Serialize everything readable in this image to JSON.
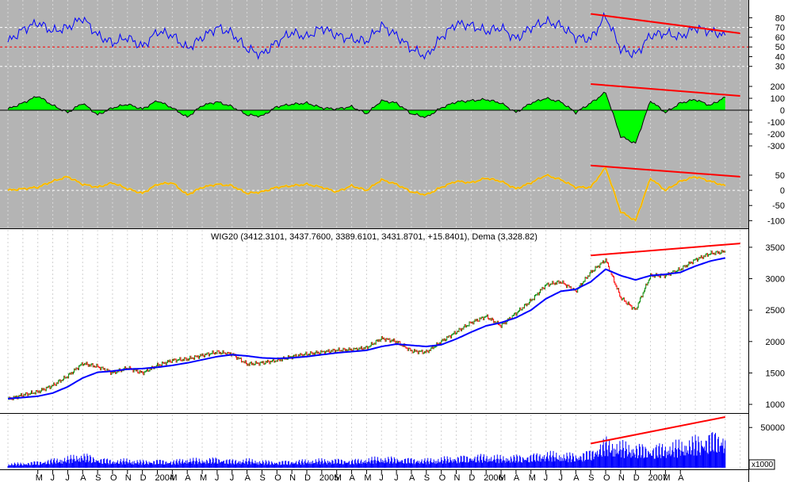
{
  "title": "WIG20 (3412.3101, 3437.7600, 3389.6101, 3431.8701, +15.8401), Dema (3,328.82)",
  "volume_unit_label": "x1000",
  "colors": {
    "panel_bg_top": "#b4b4b4",
    "rsi_line": "#0000ff",
    "hist_fill": "#00ff00",
    "osc_line": "#ff8800",
    "osc_line2": "#ffff00",
    "trend": "#ff0000",
    "dema": "#0000ff",
    "up": "#008800",
    "down": "#ff0000",
    "volume": "#0000ff",
    "grid": "#c8c8c8"
  },
  "chart_data": [
    {
      "panel": "rsi",
      "type": "line",
      "ylim": [
        20,
        95
      ],
      "yticks": [
        80,
        70,
        60,
        50,
        40,
        30
      ],
      "dashed_levels": [
        70,
        50,
        30
      ],
      "x": [
        "2003-01",
        "2003-02",
        "2003-03",
        "2003-04",
        "2003-05",
        "2003-06",
        "2003-07",
        "2003-08",
        "2003-09",
        "2003-10",
        "2003-11",
        "2003-12",
        "2004-01",
        "2004-02",
        "2004-03",
        "2004-04",
        "2004-05",
        "2004-06",
        "2004-07",
        "2004-08",
        "2004-09",
        "2004-10",
        "2004-11",
        "2004-12",
        "2005-01",
        "2005-02",
        "2005-03",
        "2005-04",
        "2005-05",
        "2005-06",
        "2005-07",
        "2005-08",
        "2005-09",
        "2005-10",
        "2005-11",
        "2005-12",
        "2006-01",
        "2006-02",
        "2006-03",
        "2006-04",
        "2006-05",
        "2006-06",
        "2006-07",
        "2006-08",
        "2006-09",
        "2006-10",
        "2006-11",
        "2006-12",
        "2007-01"
      ],
      "values": [
        55,
        68,
        75,
        66,
        70,
        80,
        62,
        54,
        60,
        50,
        66,
        62,
        48,
        60,
        70,
        64,
        48,
        42,
        55,
        65,
        60,
        70,
        62,
        58,
        56,
        72,
        62,
        48,
        40,
        60,
        74,
        72,
        66,
        70,
        58,
        70,
        76,
        72,
        60,
        58,
        82,
        48,
        42,
        62,
        64,
        60,
        70,
        66,
        62
      ],
      "trend_line": {
        "from": {
          "x": "2006-04",
          "value": 84
        },
        "to": {
          "x": "2007-02",
          "value": 64
        }
      }
    },
    {
      "panel": "macd_histogram",
      "type": "area",
      "ylim": [
        -380,
        260
      ],
      "yticks": [
        200,
        100,
        0,
        -100,
        -200,
        -300
      ],
      "x": [
        "2003-01",
        "2003-02",
        "2003-03",
        "2003-04",
        "2003-05",
        "2003-06",
        "2003-07",
        "2003-08",
        "2003-09",
        "2003-10",
        "2003-11",
        "2003-12",
        "2004-01",
        "2004-02",
        "2004-03",
        "2004-04",
        "2004-05",
        "2004-06",
        "2004-07",
        "2004-08",
        "2004-09",
        "2004-10",
        "2004-11",
        "2004-12",
        "2005-01",
        "2005-02",
        "2005-03",
        "2005-04",
        "2005-05",
        "2005-06",
        "2005-07",
        "2005-08",
        "2005-09",
        "2005-10",
        "2005-11",
        "2005-12",
        "2006-01",
        "2006-02",
        "2006-03",
        "2006-04",
        "2006-05",
        "2006-06",
        "2006-07",
        "2006-08",
        "2006-09",
        "2006-10",
        "2006-11",
        "2006-12",
        "2007-01"
      ],
      "values": [
        10,
        60,
        120,
        40,
        -20,
        60,
        -40,
        20,
        50,
        10,
        80,
        20,
        -60,
        40,
        70,
        30,
        -40,
        -50,
        30,
        50,
        60,
        20,
        10,
        30,
        -30,
        80,
        60,
        -30,
        -60,
        20,
        70,
        80,
        90,
        60,
        -20,
        60,
        100,
        70,
        -20,
        60,
        150,
        -220,
        -280,
        80,
        -20,
        60,
        90,
        40,
        110
      ],
      "trend_line": {
        "from": {
          "x": "2006-04",
          "value": 220
        },
        "to": {
          "x": "2007-02",
          "value": 120
        }
      }
    },
    {
      "panel": "oscillator",
      "type": "line",
      "ylim": [
        -120,
        110
      ],
      "yticks": [
        50,
        0,
        -50,
        -100
      ],
      "dashed_levels": [
        0
      ],
      "x": [
        "2003-01",
        "2003-02",
        "2003-03",
        "2003-04",
        "2003-05",
        "2003-06",
        "2003-07",
        "2003-08",
        "2003-09",
        "2003-10",
        "2003-11",
        "2003-12",
        "2004-01",
        "2004-02",
        "2004-03",
        "2004-04",
        "2004-05",
        "2004-06",
        "2004-07",
        "2004-08",
        "2004-09",
        "2004-10",
        "2004-11",
        "2004-12",
        "2005-01",
        "2005-02",
        "2005-03",
        "2005-04",
        "2005-05",
        "2005-06",
        "2005-07",
        "2005-08",
        "2005-09",
        "2005-10",
        "2005-11",
        "2005-12",
        "2006-01",
        "2006-02",
        "2006-03",
        "2006-04",
        "2006-05",
        "2006-06",
        "2006-07",
        "2006-08",
        "2006-09",
        "2006-10",
        "2006-11",
        "2006-12",
        "2007-01"
      ],
      "values": [
        0,
        5,
        10,
        30,
        45,
        20,
        10,
        25,
        5,
        -10,
        20,
        25,
        -15,
        10,
        20,
        15,
        -10,
        -5,
        10,
        15,
        20,
        10,
        -5,
        15,
        0,
        35,
        20,
        -5,
        -15,
        10,
        30,
        25,
        40,
        30,
        5,
        25,
        50,
        35,
        10,
        10,
        75,
        -70,
        -100,
        40,
        0,
        30,
        45,
        30,
        15
      ],
      "trend_line": {
        "from": {
          "x": "2006-04",
          "value": 82
        },
        "to": {
          "x": "2007-02",
          "value": 45
        }
      }
    },
    {
      "panel": "price",
      "type": "line",
      "title": "WIG20 (3412.3101, 3437.7600, 3389.6101, 3431.8701, +15.8401), Dema (3,328.82)",
      "ylim": [
        900,
        3650
      ],
      "yticks": [
        3500,
        3000,
        2500,
        2000,
        1500,
        1000
      ],
      "x": [
        "2003-01",
        "2003-02",
        "2003-03",
        "2003-04",
        "2003-05",
        "2003-06",
        "2003-07",
        "2003-08",
        "2003-09",
        "2003-10",
        "2003-11",
        "2003-12",
        "2004-01",
        "2004-02",
        "2004-03",
        "2004-04",
        "2004-05",
        "2004-06",
        "2004-07",
        "2004-08",
        "2004-09",
        "2004-10",
        "2004-11",
        "2004-12",
        "2005-01",
        "2005-02",
        "2005-03",
        "2005-04",
        "2005-05",
        "2005-06",
        "2005-07",
        "2005-08",
        "2005-09",
        "2005-10",
        "2005-11",
        "2005-12",
        "2006-01",
        "2006-02",
        "2006-03",
        "2006-04",
        "2006-05",
        "2006-06",
        "2006-07",
        "2006-08",
        "2006-09",
        "2006-10",
        "2006-11",
        "2006-12",
        "2007-01"
      ],
      "series": [
        {
          "name": "WIG20",
          "values": [
            1080,
            1150,
            1200,
            1300,
            1450,
            1650,
            1600,
            1500,
            1580,
            1500,
            1620,
            1700,
            1720,
            1780,
            1830,
            1800,
            1640,
            1660,
            1700,
            1760,
            1800,
            1830,
            1860,
            1870,
            1900,
            2050,
            2000,
            1850,
            1830,
            2000,
            2150,
            2300,
            2400,
            2250,
            2450,
            2650,
            2900,
            2950,
            2800,
            3100,
            3300,
            2700,
            2500,
            3050,
            3050,
            3150,
            3300,
            3400,
            3430
          ]
        },
        {
          "name": "Dema",
          "values": [
            1090,
            1110,
            1130,
            1180,
            1280,
            1420,
            1510,
            1530,
            1560,
            1570,
            1590,
            1620,
            1660,
            1710,
            1760,
            1790,
            1770,
            1740,
            1730,
            1740,
            1760,
            1790,
            1820,
            1840,
            1860,
            1920,
            1960,
            1940,
            1920,
            1950,
            2040,
            2150,
            2250,
            2300,
            2380,
            2500,
            2680,
            2800,
            2830,
            2950,
            3150,
            3050,
            2980,
            3050,
            3070,
            3100,
            3200,
            3280,
            3330
          ]
        }
      ],
      "trend_line": {
        "from": {
          "x": "2006-04",
          "value": 3370
        },
        "to": {
          "x": "2007-02",
          "value": 3560
        }
      }
    },
    {
      "panel": "volume",
      "type": "bar",
      "ylim": [
        0,
        65000
      ],
      "yticks": [
        50000
      ],
      "x": [
        "2003-01",
        "2003-02",
        "2003-03",
        "2003-04",
        "2003-05",
        "2003-06",
        "2003-07",
        "2003-08",
        "2003-09",
        "2003-10",
        "2003-11",
        "2003-12",
        "2004-01",
        "2004-02",
        "2004-03",
        "2004-04",
        "2004-05",
        "2004-06",
        "2004-07",
        "2004-08",
        "2004-09",
        "2004-10",
        "2004-11",
        "2004-12",
        "2005-01",
        "2005-02",
        "2005-03",
        "2005-04",
        "2005-05",
        "2005-06",
        "2005-07",
        "2005-08",
        "2005-09",
        "2005-10",
        "2005-11",
        "2005-12",
        "2006-01",
        "2006-02",
        "2006-03",
        "2006-04",
        "2006-05",
        "2006-06",
        "2006-07",
        "2006-08",
        "2006-09",
        "2006-10",
        "2006-11",
        "2006-12",
        "2007-01"
      ],
      "values": [
        6000,
        7000,
        9000,
        12000,
        15000,
        20000,
        14000,
        11000,
        12000,
        10000,
        11000,
        10000,
        13000,
        12000,
        14000,
        11000,
        12000,
        10000,
        9000,
        10000,
        11000,
        12000,
        12000,
        11000,
        13000,
        15000,
        14000,
        13000,
        12000,
        14000,
        16000,
        17000,
        18000,
        16000,
        17000,
        18000,
        22000,
        20000,
        19000,
        24000,
        40000,
        35000,
        32000,
        30000,
        33000,
        36000,
        42000,
        48000,
        50000
      ],
      "trend_line": {
        "from": {
          "x": "2006-04",
          "value": 30000
        },
        "to": {
          "x": "2007-01",
          "value": 63000
        }
      }
    }
  ],
  "x_axis": {
    "labels": [
      "M",
      "J",
      "J",
      "A",
      "S",
      "O",
      "N",
      "D",
      "2004",
      "M",
      "A",
      "M",
      "J",
      "J",
      "A",
      "S",
      "O",
      "N",
      "D",
      "2005",
      "M",
      "A",
      "M",
      "J",
      "J",
      "A",
      "S",
      "O",
      "N",
      "D",
      "2006",
      "M",
      "A",
      "M",
      "J",
      "J",
      "A",
      "S",
      "O",
      "N",
      "D",
      "2007",
      "M",
      "A"
    ]
  }
}
